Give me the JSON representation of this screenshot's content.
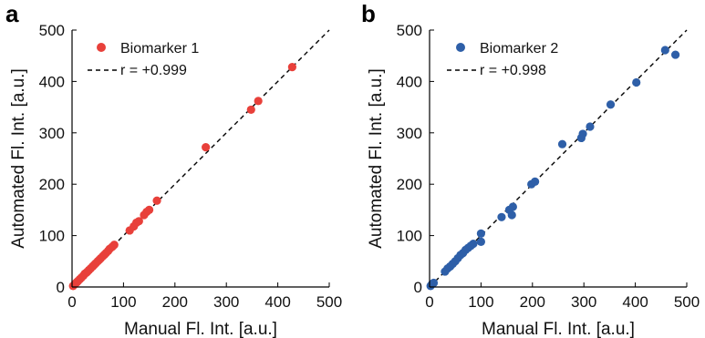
{
  "chart_data": [
    {
      "type": "scatter",
      "panel_label": "a",
      "xlabel": "Manual Fl. Int. [a.u.]",
      "ylabel": "Automated Fl. Int. [a.u.]",
      "xlim": [
        0,
        500
      ],
      "ylim": [
        0,
        500
      ],
      "xticks": [
        "0",
        "100",
        "200",
        "300",
        "400",
        "500"
      ],
      "yticks": [
        "0",
        "100",
        "200",
        "300",
        "400",
        "500"
      ],
      "grid": false,
      "legend_position": "top-left",
      "series": [
        {
          "name": "Biomarker 1",
          "color": "#e8403a",
          "points": [
            [
              2,
              2
            ],
            [
              5,
              5
            ],
            [
              8,
              8
            ],
            [
              10,
              10
            ],
            [
              12,
              12
            ],
            [
              15,
              15
            ],
            [
              18,
              18
            ],
            [
              22,
              22
            ],
            [
              25,
              26
            ],
            [
              28,
              28
            ],
            [
              30,
              30
            ],
            [
              33,
              33
            ],
            [
              36,
              36
            ],
            [
              40,
              40
            ],
            [
              43,
              43
            ],
            [
              46,
              46
            ],
            [
              50,
              50
            ],
            [
              53,
              53
            ],
            [
              56,
              56
            ],
            [
              60,
              60
            ],
            [
              63,
              63
            ],
            [
              66,
              66
            ],
            [
              70,
              70
            ],
            [
              73,
              74
            ],
            [
              78,
              78
            ],
            [
              82,
              82
            ],
            [
              112,
              110
            ],
            [
              120,
              118
            ],
            [
              125,
              125
            ],
            [
              130,
              128
            ],
            [
              140,
              140
            ],
            [
              145,
              146
            ],
            [
              150,
              150
            ],
            [
              165,
              168
            ],
            [
              260,
              272
            ],
            [
              348,
              345
            ],
            [
              362,
              362
            ],
            [
              428,
              428
            ]
          ]
        }
      ],
      "fit": {
        "name": "r = +0.999",
        "style": "dashed",
        "color": "#000000",
        "from": [
          0,
          0
        ],
        "to": [
          500,
          500
        ]
      }
    },
    {
      "type": "scatter",
      "panel_label": "b",
      "xlabel": "Manual Fl. Int. [a.u.]",
      "ylabel": "Automated Fl. Int. [a.u.]",
      "xlim": [
        0,
        500
      ],
      "ylim": [
        0,
        500
      ],
      "xticks": [
        "0",
        "100",
        "200",
        "300",
        "400",
        "500"
      ],
      "yticks": [
        "0",
        "100",
        "200",
        "300",
        "400",
        "500"
      ],
      "grid": false,
      "legend_position": "top-left",
      "series": [
        {
          "name": "Biomarker 2",
          "color": "#2e5fa8",
          "points": [
            [
              2,
              2
            ],
            [
              5,
              6
            ],
            [
              8,
              8
            ],
            [
              30,
              30
            ],
            [
              35,
              36
            ],
            [
              40,
              40
            ],
            [
              45,
              45
            ],
            [
              50,
              50
            ],
            [
              55,
              56
            ],
            [
              60,
              62
            ],
            [
              65,
              66
            ],
            [
              70,
              72
            ],
            [
              75,
              76
            ],
            [
              80,
              80
            ],
            [
              85,
              84
            ],
            [
              100,
              88
            ],
            [
              100,
              104
            ],
            [
              140,
              136
            ],
            [
              155,
              150
            ],
            [
              160,
              140
            ],
            [
              162,
              156
            ],
            [
              198,
              200
            ],
            [
              205,
              205
            ],
            [
              258,
              278
            ],
            [
              295,
              290
            ],
            [
              298,
              298
            ],
            [
              312,
              312
            ],
            [
              352,
              355
            ],
            [
              402,
              398
            ],
            [
              458,
              461
            ],
            [
              478,
              452
            ]
          ]
        }
      ],
      "fit": {
        "name": "r = +0.998",
        "style": "dashed",
        "color": "#000000",
        "from": [
          0,
          0
        ],
        "to": [
          500,
          500
        ]
      }
    }
  ]
}
